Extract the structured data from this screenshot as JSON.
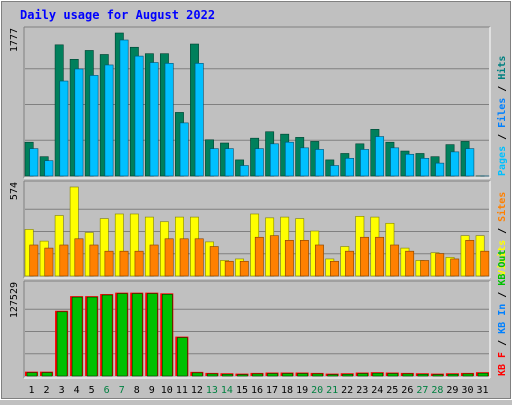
{
  "chart_data": [
    {
      "type": "bar",
      "title": "Daily usage for August 2022",
      "categories": [
        "1",
        "2",
        "3",
        "4",
        "5",
        "6",
        "7",
        "8",
        "9",
        "10",
        "11",
        "12",
        "13",
        "14",
        "15",
        "16",
        "17",
        "18",
        "19",
        "20",
        "21",
        "22",
        "23",
        "24",
        "25",
        "26",
        "27",
        "28",
        "29",
        "30",
        "31"
      ],
      "weekend_days": [
        "6",
        "7",
        "13",
        "14",
        "20",
        "21",
        "27",
        "28"
      ],
      "colors": {
        "title": "#0000ff",
        "weekend_label": "#008040",
        "weekday_label": "#000000"
      },
      "panels": [
        {
          "name": "top",
          "ylabel_max": "1777",
          "ymax": 1777,
          "right_labels": [
            {
              "text": "Pages",
              "color": "#00c0ff"
            },
            {
              "text": " / ",
              "color": "#000000"
            },
            {
              "text": "Files",
              "color": "#0080ff"
            },
            {
              "text": " / ",
              "color": "#000000"
            },
            {
              "text": "Hits",
              "color": "#008080"
            }
          ],
          "series": [
            {
              "name": "Hits",
              "color": "#00805c",
              "values": [
                420,
                240,
                1630,
                1450,
                1560,
                1510,
                1790,
                1600,
                1520,
                1520,
                790,
                1640,
                450,
                410,
                200,
                470,
                550,
                520,
                480,
                430,
                200,
                280,
                400,
                580,
                420,
                310,
                280,
                240,
                390,
                430,
                1
              ]
            },
            {
              "name": "Files",
              "color": "#00c0ff",
              "values": [
                340,
                190,
                1180,
                1330,
                1250,
                1380,
                1690,
                1490,
                1410,
                1400,
                660,
                1400,
                340,
                340,
                130,
                340,
                400,
                420,
                350,
                330,
                130,
                220,
                330,
                490,
                350,
                270,
                220,
                160,
                300,
                340,
                1
              ]
            }
          ]
        },
        {
          "name": "middle",
          "ylabel_max": "574",
          "ymax": 574,
          "right_labels": [
            {
              "text": "Visits",
              "color": "#ffff00"
            },
            {
              "text": " / ",
              "color": "#000000"
            },
            {
              "text": "Sites",
              "color": "#ff8000"
            }
          ],
          "series": [
            {
              "name": "Visits",
              "color": "#ffff00",
              "values": [
                300,
                225,
                390,
                590,
                280,
                370,
                400,
                400,
                380,
                350,
                380,
                380,
                220,
                100,
                110,
                400,
                375,
                380,
                370,
                290,
                110,
                190,
                385,
                380,
                340,
                180,
                100,
                150,
                120,
                260,
                260
              ]
            },
            {
              "name": "Sites",
              "color": "#ff8000",
              "values": [
                200,
                180,
                200,
                240,
                200,
                160,
                160,
                160,
                200,
                240,
                240,
                240,
                190,
                95,
                95,
                250,
                260,
                230,
                230,
                200,
                95,
                160,
                250,
                250,
                200,
                160,
                100,
                145,
                110,
                230,
                160
              ]
            }
          ]
        },
        {
          "name": "bottom",
          "ylabel_max": "127529",
          "ymax": 127529,
          "right_labels": [
            {
              "text": "KB F",
              "color": "#ff0000"
            },
            {
              "text": " / ",
              "color": "#000000"
            },
            {
              "text": "KB In",
              "color": "#0080ff"
            },
            {
              "text": " / ",
              "color": "#000000"
            },
            {
              "text": "KB Out",
              "color": "#00c000"
            }
          ],
          "series": [
            {
              "name": "KB Out",
              "color": "#00c000",
              "values": [
                4800,
                4800,
                92000,
                113000,
                113000,
                116000,
                118000,
                118000,
                118000,
                117000,
                55000,
                4500,
                3000,
                2500,
                2000,
                3000,
                3500,
                3500,
                3500,
                3000,
                2000,
                2500,
                3500,
                4000,
                3500,
                3000,
                2500,
                2000,
                2500,
                3000,
                4000
              ]
            },
            {
              "name": "KB F",
              "color": "#ff0000",
              "values": [
                4800,
                4800,
                92000,
                113000,
                113000,
                116000,
                118000,
                118000,
                118000,
                117000,
                55000,
                4500,
                3000,
                2500,
                2000,
                3000,
                3500,
                3500,
                3500,
                3000,
                2000,
                2500,
                3500,
                4000,
                3500,
                3000,
                2500,
                2000,
                2500,
                3000,
                4000
              ]
            }
          ]
        }
      ]
    }
  ]
}
